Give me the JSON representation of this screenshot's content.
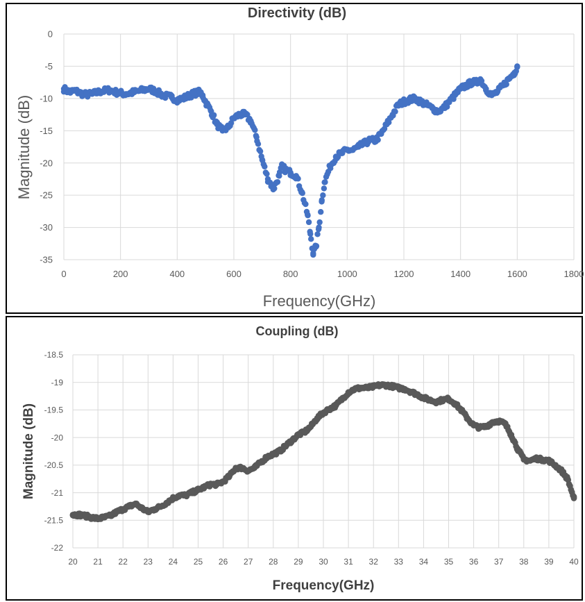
{
  "chart_data": [
    {
      "type": "scatter",
      "title": "Directivity (dB)",
      "xlabel": "Frequency(GHz)",
      "ylabel": "Magnitude (dB)",
      "xlim": [
        0,
        1800
      ],
      "ylim": [
        -35,
        0
      ],
      "x_ticks": [
        "0",
        "200",
        "400",
        "600",
        "800",
        "1000",
        "1200",
        "1400",
        "1600",
        "1800"
      ],
      "y_ticks": [
        "0",
        "-5",
        "-10",
        "-15",
        "-20",
        "-25",
        "-30",
        "-35"
      ],
      "grid": true,
      "legend": "none",
      "color": "#4472C4",
      "series": [
        {
          "x": [
            0,
            20,
            40,
            60,
            80,
            100,
            130,
            160,
            190,
            220,
            250,
            280,
            300,
            320,
            350,
            380,
            400,
            420,
            440,
            460,
            480,
            490,
            500,
            520,
            540,
            560,
            580,
            600,
            620,
            640,
            660,
            680,
            700,
            720,
            740,
            760,
            770,
            780,
            800,
            820,
            840,
            860,
            870,
            880,
            890,
            900,
            910,
            920,
            940,
            960,
            980,
            1000,
            1020,
            1040,
            1060,
            1080,
            1100,
            1120,
            1140,
            1160,
            1180,
            1200,
            1220,
            1240,
            1260,
            1280,
            1300,
            1320,
            1340,
            1360,
            1380,
            1400,
            1420,
            1440,
            1460,
            1470,
            1490,
            1510,
            1530,
            1550,
            1570,
            1590,
            1600
          ],
          "y": [
            -8.5,
            -9,
            -8.8,
            -9.2,
            -9.4,
            -9.3,
            -8.9,
            -8.7,
            -9.1,
            -9.3,
            -9.0,
            -8.7,
            -8.5,
            -8.8,
            -9.5,
            -9.8,
            -10.2,
            -10.0,
            -9.6,
            -9.2,
            -9.0,
            -9.5,
            -10.5,
            -12.0,
            -14.0,
            -15.0,
            -14.5,
            -13.0,
            -12.5,
            -12.5,
            -13.5,
            -16.0,
            -19.5,
            -22.5,
            -24.0,
            -22.0,
            -20.5,
            -21.0,
            -21.5,
            -22.0,
            -24.5,
            -28.0,
            -31.0,
            -34.0,
            -33.0,
            -30.0,
            -26.0,
            -23.0,
            -20.5,
            -19.0,
            -18.5,
            -18.0,
            -18.0,
            -17.5,
            -17.0,
            -16.5,
            -16.5,
            -15.5,
            -14.0,
            -12.5,
            -11.0,
            -10.5,
            -10.2,
            -10.0,
            -10.5,
            -11.0,
            -11.5,
            -12.0,
            -11.5,
            -10.5,
            -9.5,
            -8.5,
            -8.0,
            -7.5,
            -7.5,
            -7.0,
            -8.5,
            -9.5,
            -9.0,
            -8.0,
            -7.0,
            -6.0,
            -5.0
          ]
        }
      ]
    },
    {
      "type": "scatter",
      "title": "Coupling (dB)",
      "xlabel": "Frequency(GHz)",
      "ylabel": "Magnitude (dB)",
      "xlim": [
        20,
        40
      ],
      "ylim": [
        -22,
        -18.5
      ],
      "x_ticks": [
        "20",
        "21",
        "22",
        "23",
        "24",
        "25",
        "26",
        "27",
        "28",
        "29",
        "30",
        "31",
        "32",
        "33",
        "34",
        "35",
        "36",
        "37",
        "38",
        "39",
        "40"
      ],
      "y_ticks": [
        "-18.5",
        "-19",
        "-19.5",
        "-20",
        "-20.5",
        "-21",
        "-21.5",
        "-22"
      ],
      "grid": true,
      "legend": "none",
      "color": "#595959",
      "series": [
        {
          "x": [
            20,
            20.25,
            20.5,
            20.75,
            21,
            21.25,
            21.5,
            21.75,
            22,
            22.25,
            22.5,
            22.75,
            23,
            23.25,
            23.5,
            23.75,
            24,
            24.25,
            24.5,
            24.75,
            25,
            25.25,
            25.5,
            25.75,
            26,
            26.25,
            26.5,
            26.75,
            27,
            27.25,
            27.5,
            27.75,
            28,
            28.25,
            28.5,
            28.75,
            29,
            29.25,
            29.5,
            29.75,
            30,
            30.25,
            30.5,
            30.75,
            31,
            31.25,
            31.5,
            31.75,
            32,
            32.25,
            32.5,
            32.75,
            33,
            33.25,
            33.5,
            33.75,
            34,
            34.25,
            34.5,
            34.75,
            35,
            35.25,
            35.5,
            35.75,
            36,
            36.25,
            36.5,
            36.75,
            37,
            37.25,
            37.5,
            37.75,
            38,
            38.25,
            38.5,
            38.75,
            39,
            39.25,
            39.5,
            39.75,
            40
          ],
          "y": [
            -21.4,
            -21.4,
            -21.42,
            -21.45,
            -21.47,
            -21.45,
            -21.42,
            -21.35,
            -21.3,
            -21.25,
            -21.2,
            -21.28,
            -21.35,
            -21.3,
            -21.25,
            -21.18,
            -21.1,
            -21.05,
            -21.05,
            -21.0,
            -20.95,
            -20.9,
            -20.85,
            -20.85,
            -20.8,
            -20.7,
            -20.55,
            -20.55,
            -20.6,
            -20.55,
            -20.45,
            -20.35,
            -20.3,
            -20.25,
            -20.15,
            -20.05,
            -19.95,
            -19.9,
            -19.8,
            -19.65,
            -19.55,
            -19.48,
            -19.42,
            -19.3,
            -19.18,
            -19.12,
            -19.1,
            -19.1,
            -19.08,
            -19.05,
            -19.05,
            -19.07,
            -19.1,
            -19.12,
            -19.17,
            -19.22,
            -19.28,
            -19.32,
            -19.35,
            -19.32,
            -19.3,
            -19.38,
            -19.5,
            -19.65,
            -19.78,
            -19.82,
            -19.8,
            -19.72,
            -19.7,
            -19.75,
            -19.95,
            -20.2,
            -20.4,
            -20.42,
            -20.38,
            -20.4,
            -20.42,
            -20.5,
            -20.6,
            -20.75,
            -21.1
          ]
        }
      ]
    }
  ]
}
